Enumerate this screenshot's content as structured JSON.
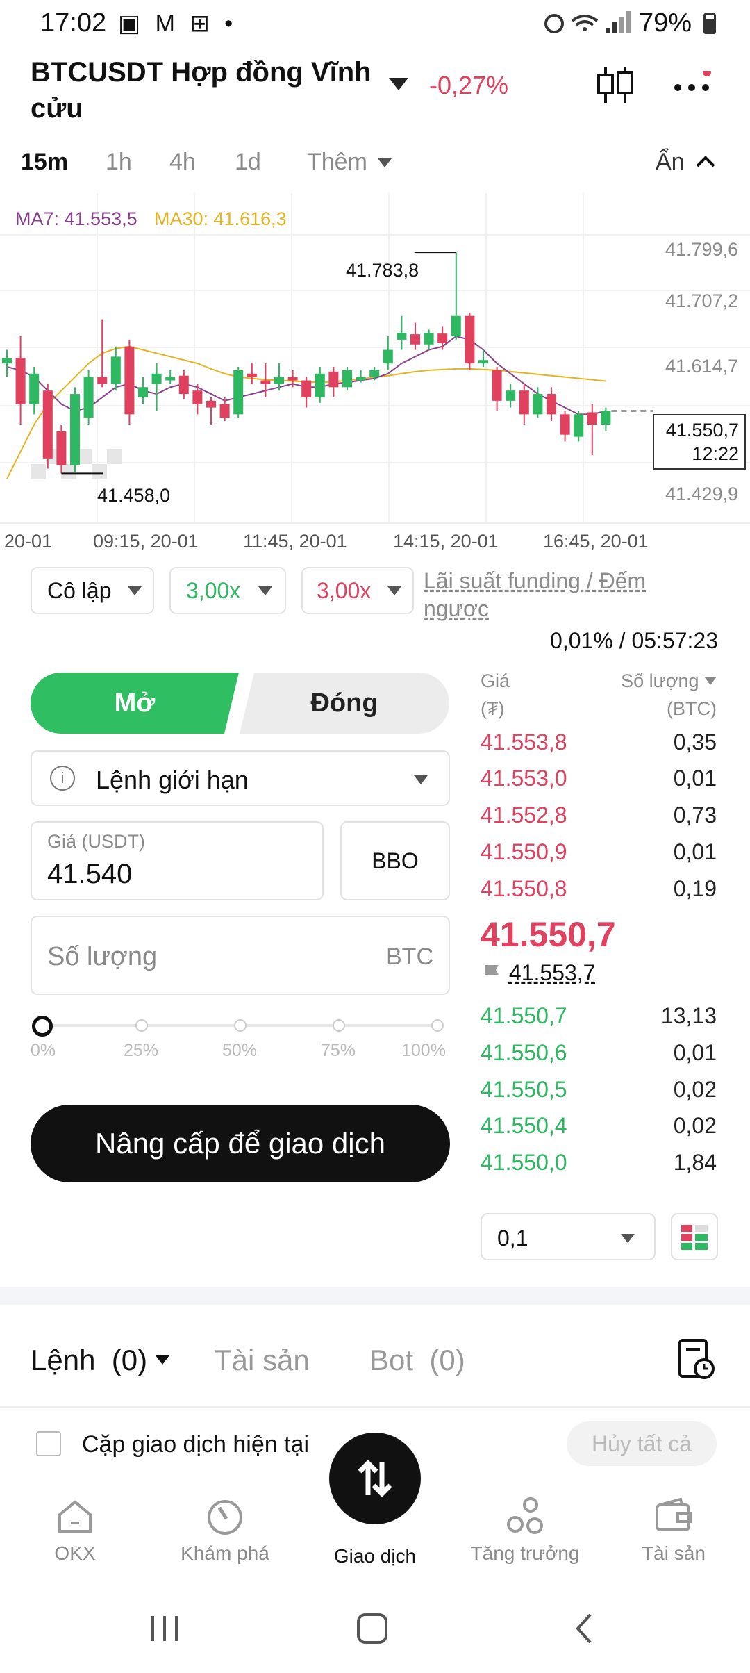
{
  "status_bar": {
    "time": "17:02",
    "left_icons": "▣ M ⊞ •",
    "battery": "79%"
  },
  "header": {
    "title": "BTCUSDT Hợp đồng Vĩnh cửu",
    "change": "-0,27%",
    "colors": {
      "up": "#2eb862",
      "down": "#e0415f",
      "accent_button": "#2fbf62"
    }
  },
  "timeframes": {
    "items": [
      "15m",
      "1h",
      "4h",
      "1d"
    ],
    "active": "15m",
    "more": "Thêm",
    "hide": "Ẩn"
  },
  "chart": {
    "ma7": "MA7: 41.553,5",
    "ma30": "MA30: 41.616,3",
    "y_ticks": [
      "41.799,6",
      "41.707,2",
      "41.614,7",
      "41.429,9"
    ],
    "x_ticks": [
      "20-01",
      "09:15, 20-01",
      "11:45, 20-01",
      "14:15, 20-01",
      "16:45, 20-01"
    ],
    "high_label": "41.783,8",
    "low_label": "41.458,0",
    "current_price": "41.550,7",
    "countdown": "12:22"
  },
  "chart_data": {
    "type": "candlestick",
    "y_range": [
      41400,
      41830
    ],
    "candles": [
      {
        "o": 41620,
        "c": 41628,
        "h": 41640,
        "l": 41600
      },
      {
        "o": 41628,
        "c": 41560,
        "h": 41660,
        "l": 41530
      },
      {
        "o": 41560,
        "c": 41605,
        "h": 41615,
        "l": 41545
      },
      {
        "o": 41580,
        "c": 41480,
        "h": 41590,
        "l": 41465
      },
      {
        "o": 41520,
        "c": 41470,
        "h": 41530,
        "l": 41458
      },
      {
        "o": 41470,
        "c": 41575,
        "h": 41585,
        "l": 41460
      },
      {
        "o": 41540,
        "c": 41600,
        "h": 41610,
        "l": 41530
      },
      {
        "o": 41600,
        "c": 41590,
        "h": 41685,
        "l": 41585
      },
      {
        "o": 41590,
        "c": 41630,
        "h": 41645,
        "l": 41580
      },
      {
        "o": 41645,
        "c": 41545,
        "h": 41655,
        "l": 41530
      },
      {
        "o": 41570,
        "c": 41585,
        "h": 41600,
        "l": 41560
      },
      {
        "o": 41590,
        "c": 41605,
        "h": 41620,
        "l": 41550
      },
      {
        "o": 41595,
        "c": 41600,
        "h": 41610,
        "l": 41590
      },
      {
        "o": 41602,
        "c": 41575,
        "h": 41610,
        "l": 41568
      },
      {
        "o": 41580,
        "c": 41560,
        "h": 41590,
        "l": 41545
      },
      {
        "o": 41565,
        "c": 41555,
        "h": 41570,
        "l": 41530
      },
      {
        "o": 41560,
        "c": 41540,
        "h": 41570,
        "l": 41535
      },
      {
        "o": 41545,
        "c": 41610,
        "h": 41615,
        "l": 41540
      },
      {
        "o": 41605,
        "c": 41600,
        "h": 41620,
        "l": 41590
      },
      {
        "o": 41595,
        "c": 41590,
        "h": 41620,
        "l": 41570
      },
      {
        "o": 41590,
        "c": 41600,
        "h": 41620,
        "l": 41580
      },
      {
        "o": 41600,
        "c": 41595,
        "h": 41610,
        "l": 41585
      },
      {
        "o": 41595,
        "c": 41570,
        "h": 41600,
        "l": 41555
      },
      {
        "o": 41570,
        "c": 41605,
        "h": 41615,
        "l": 41562
      },
      {
        "o": 41608,
        "c": 41585,
        "h": 41615,
        "l": 41570
      },
      {
        "o": 41585,
        "c": 41610,
        "h": 41615,
        "l": 41580
      },
      {
        "o": 41595,
        "c": 41600,
        "h": 41610,
        "l": 41592
      },
      {
        "o": 41600,
        "c": 41610,
        "h": 41615,
        "l": 41595
      },
      {
        "o": 41620,
        "c": 41640,
        "h": 41660,
        "l": 41610
      },
      {
        "o": 41655,
        "c": 41665,
        "h": 41690,
        "l": 41640
      },
      {
        "o": 41663,
        "c": 41648,
        "h": 41680,
        "l": 41640
      },
      {
        "o": 41648,
        "c": 41665,
        "h": 41670,
        "l": 41640
      },
      {
        "o": 41664,
        "c": 41650,
        "h": 41675,
        "l": 41640
      },
      {
        "o": 41660,
        "c": 41690,
        "h": 41783.8,
        "l": 41655
      },
      {
        "o": 41690,
        "c": 41620,
        "h": 41695,
        "l": 41610
      },
      {
        "o": 41620,
        "c": 41625,
        "h": 41640,
        "l": 41615
      },
      {
        "o": 41610,
        "c": 41565,
        "h": 41615,
        "l": 41550
      },
      {
        "o": 41565,
        "c": 41580,
        "h": 41590,
        "l": 41555
      },
      {
        "o": 41580,
        "c": 41545,
        "h": 41590,
        "l": 41530
      },
      {
        "o": 41545,
        "c": 41575,
        "h": 41585,
        "l": 41540
      },
      {
        "o": 41575,
        "c": 41545,
        "h": 41585,
        "l": 41535
      },
      {
        "o": 41545,
        "c": 41515,
        "h": 41550,
        "l": 41505
      },
      {
        "o": 41512,
        "c": 41545,
        "h": 41550,
        "l": 41505
      },
      {
        "o": 41548,
        "c": 41530,
        "h": 41560,
        "l": 41485
      },
      {
        "o": 41530,
        "c": 41550,
        "h": 41555,
        "l": 41520
      }
    ],
    "ma7": [
      41615,
      41610,
      41600,
      41580,
      41560,
      41550,
      41555,
      41570,
      41585,
      41590,
      41580,
      41575,
      41585,
      41590,
      41585,
      41575,
      41565,
      41570,
      41575,
      41580,
      41585,
      41590,
      41585,
      41585,
      41590,
      41592,
      41595,
      41598,
      41605,
      41620,
      41630,
      41640,
      41645,
      41660,
      41655,
      41640,
      41620,
      41605,
      41590,
      41575,
      41565,
      41555,
      41545,
      41545,
      41550
    ],
    "ma30": [
      41450,
      41490,
      41530,
      41560,
      41580,
      41600,
      41620,
      41635,
      41642,
      41645,
      41640,
      41635,
      41630,
      41625,
      41620,
      41612,
      41605,
      41600,
      41598,
      41596,
      41595,
      41594,
      41593,
      41592,
      41593,
      41595,
      41597,
      41600,
      41602,
      41605,
      41608,
      41610,
      41611,
      41612,
      41612,
      41611,
      41610,
      41608,
      41606,
      41604,
      41602,
      41600,
      41598,
      41596,
      41594
    ]
  },
  "controls": {
    "margin_mode": "Cô lập",
    "leverage_long": "3,00x",
    "leverage_short": "3,00x",
    "funding_label_line1": "Lãi suất funding / Đếm",
    "funding_label_line2": "ngược",
    "funding_value": "0,01% / 05:57:23"
  },
  "order_form": {
    "open": "Mở",
    "close": "Đóng",
    "order_type": "Lệnh giới hạn",
    "price_label": "Giá (USDT)",
    "price_value": "41.540",
    "bbo": "BBO",
    "qty_placeholder": "Số lượng",
    "qty_unit": "BTC",
    "slider_marks": [
      "0%",
      "25%",
      "50%",
      "75%",
      "100%"
    ],
    "slider_value": 0,
    "submit": "Nâng cấp để giao dịch"
  },
  "order_book": {
    "price_header": "Giá",
    "price_unit": "(₮)",
    "qty_header": "Số lượng",
    "qty_unit": "(BTC)",
    "asks": [
      {
        "price": "41.553,8",
        "qty": "0,35"
      },
      {
        "price": "41.553,0",
        "qty": "0,01"
      },
      {
        "price": "41.552,8",
        "qty": "0,73"
      },
      {
        "price": "41.550,9",
        "qty": "0,01"
      },
      {
        "price": "41.550,8",
        "qty": "0,19"
      }
    ],
    "last_price": "41.550,7",
    "mark_price": "41.553,7",
    "bids": [
      {
        "price": "41.550,7",
        "qty": "13,13"
      },
      {
        "price": "41.550,6",
        "qty": "0,01"
      },
      {
        "price": "41.550,5",
        "qty": "0,02"
      },
      {
        "price": "41.550,4",
        "qty": "0,02"
      },
      {
        "price": "41.550,0",
        "qty": "1,84"
      }
    ],
    "depth_step": "0,1"
  },
  "orders_panel": {
    "tab_orders": "Lệnh",
    "tab_orders_count": "(0)",
    "tab_assets": "Tài sản",
    "tab_bot": "Bot",
    "tab_bot_count": "(0)",
    "current_pair": "Cặp giao dịch hiện tại",
    "cancel_all": "Hủy tất cả"
  },
  "bottom_nav": {
    "items": [
      "OKX",
      "Khám phá",
      "Giao dịch",
      "Tăng trưởng",
      "Tài sản"
    ],
    "active": "Giao dịch"
  }
}
